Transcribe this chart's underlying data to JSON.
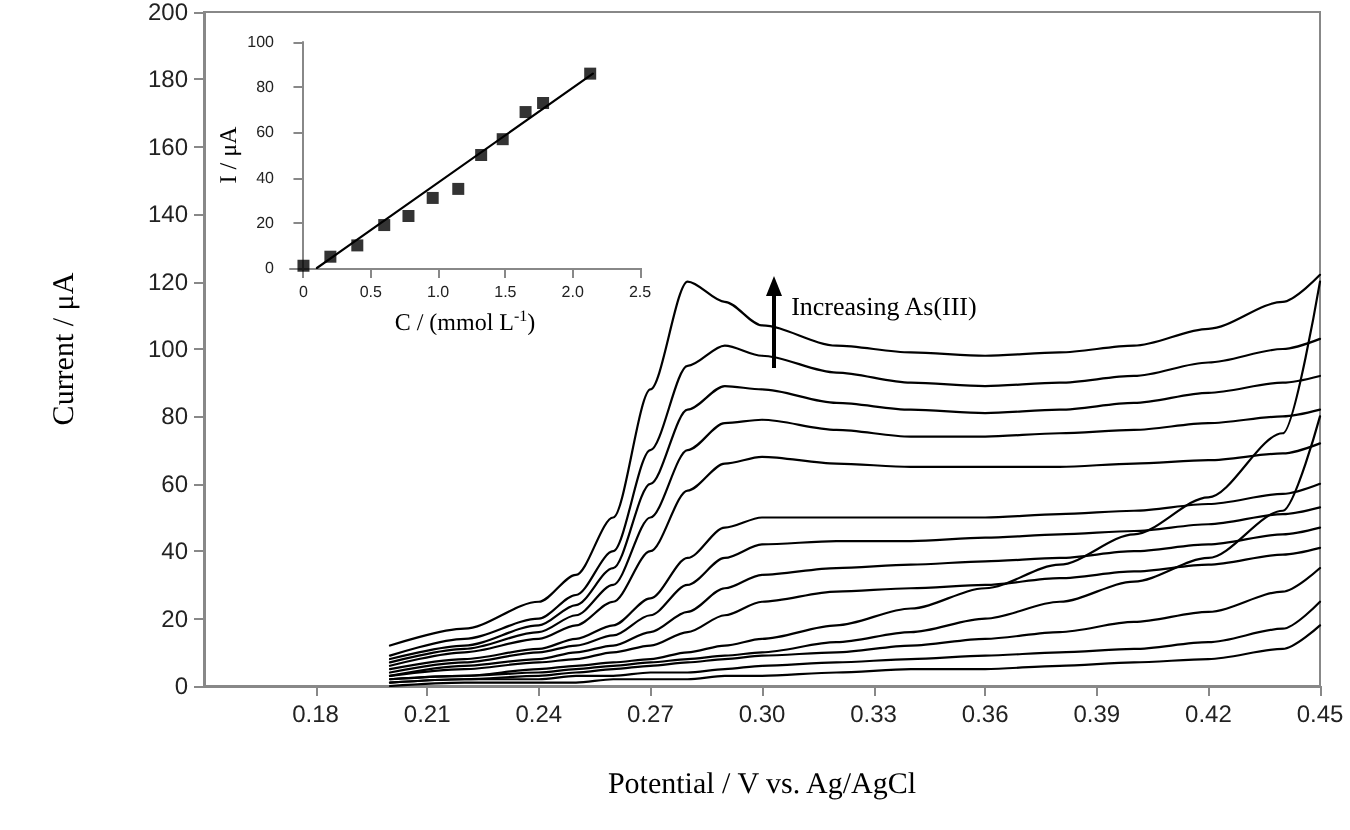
{
  "chart_data": [
    {
      "type": "line",
      "xlabel": "Potential / V vs. Ag/AgCl",
      "ylabel": "Current / μA",
      "xlim": [
        0.15,
        0.45
      ],
      "ylim": [
        0,
        200
      ],
      "xticks": [
        0.18,
        0.21,
        0.24,
        0.27,
        {
          "value": 0.3,
          "label": "0.30"
        },
        0.33,
        0.36,
        0.39,
        0.42,
        0.45
      ],
      "yticks": [
        0,
        20,
        40,
        60,
        80,
        100,
        120,
        140,
        160,
        180,
        200
      ],
      "marker": "none",
      "grid": false,
      "annotations": [
        {
          "text": "Increasing As(III)",
          "x": 0.303,
          "y": 108
        }
      ],
      "x": [
        0.2,
        0.22,
        0.24,
        0.25,
        0.26,
        0.27,
        0.28,
        0.29,
        0.3,
        0.32,
        0.34,
        0.36,
        0.38,
        0.4,
        0.42,
        0.44,
        0.45
      ],
      "series": [
        {
          "color": "#000000",
          "values": [
            12,
            17,
            25,
            33,
            50,
            88,
            120,
            114,
            107,
            101,
            99,
            98,
            99,
            101,
            106,
            114,
            122
          ]
        },
        {
          "color": "#000000",
          "values": [
            9,
            14,
            20,
            27,
            40,
            70,
            95,
            101,
            98,
            93,
            90,
            89,
            90,
            92,
            96,
            100,
            103
          ]
        },
        {
          "color": "#000000",
          "values": [
            8,
            12,
            18,
            24,
            35,
            60,
            82,
            89,
            88,
            84,
            82,
            81,
            82,
            84,
            87,
            90,
            92
          ]
        },
        {
          "color": "#000000",
          "values": [
            7,
            11,
            16,
            21,
            30,
            50,
            70,
            78,
            79,
            76,
            74,
            74,
            75,
            76,
            78,
            80,
            82
          ]
        },
        {
          "color": "#000000",
          "values": [
            6,
            10,
            14,
            18,
            25,
            40,
            58,
            66,
            68,
            66,
            65,
            65,
            65,
            66,
            67,
            69,
            72
          ]
        },
        {
          "color": "#000000",
          "values": [
            5,
            8,
            11,
            14,
            18,
            26,
            38,
            47,
            50,
            50,
            50,
            50,
            51,
            52,
            54,
            57,
            60
          ]
        },
        {
          "color": "#000000",
          "values": [
            4,
            7,
            10,
            12,
            15,
            21,
            30,
            38,
            42,
            43,
            43,
            44,
            45,
            46,
            48,
            51,
            53
          ]
        },
        {
          "color": "#000000",
          "values": [
            3,
            6,
            8,
            10,
            12,
            16,
            22,
            29,
            33,
            35,
            36,
            37,
            38,
            40,
            42,
            45,
            47
          ]
        },
        {
          "color": "#000000",
          "values": [
            3,
            5,
            7,
            8,
            10,
            12,
            16,
            21,
            25,
            28,
            29,
            30,
            32,
            34,
            36,
            39,
            41
          ]
        },
        {
          "color": "#000000",
          "values": [
            2,
            3,
            5,
            6,
            7,
            8,
            10,
            12,
            14,
            18,
            23,
            29,
            36,
            45,
            56,
            75,
            120
          ]
        },
        {
          "color": "#000000",
          "values": [
            2,
            3,
            4,
            5,
            6,
            7,
            8,
            9,
            10,
            13,
            16,
            20,
            25,
            31,
            38,
            52,
            80
          ]
        },
        {
          "color": "#000000",
          "values": [
            1,
            2,
            3,
            4,
            5,
            6,
            7,
            8,
            9,
            10,
            12,
            14,
            16,
            19,
            22,
            28,
            35
          ]
        },
        {
          "color": "#000000",
          "values": [
            1,
            2,
            2,
            3,
            3,
            4,
            4,
            5,
            6,
            7,
            8,
            9,
            10,
            11,
            13,
            17,
            25
          ]
        },
        {
          "color": "#000000",
          "values": [
            0,
            1,
            1,
            1,
            2,
            2,
            2,
            3,
            3,
            4,
            5,
            5,
            6,
            7,
            8,
            11,
            18
          ]
        }
      ]
    },
    {
      "type": "scatter",
      "xlabel": "C / (mmol L$^{-1}$)",
      "ylabel": "I / μA",
      "xlim": [
        -0.1,
        2.5
      ],
      "ylim": [
        0,
        100
      ],
      "xticks": [
        0,
        0.5,
        {
          "value": 1,
          "label": "1.0"
        },
        1.5,
        {
          "value": 2,
          "label": "2.0"
        },
        2.5
      ],
      "yticks": [
        0,
        20,
        40,
        60,
        80,
        100
      ],
      "grid": false,
      "series": [
        {
          "color": "#000000",
          "marker": "square",
          "x": [
            0,
            0.2,
            0.4,
            0.6,
            0.78,
            0.96,
            1.15,
            1.32,
            1.48,
            1.65,
            1.78,
            2.13
          ],
          "values": [
            1,
            5,
            10,
            19,
            23,
            31,
            35,
            50,
            57,
            69,
            73,
            86
          ]
        },
        {
          "type": "line",
          "color": "#000000",
          "marker": "none",
          "x": [
            0.1,
            2.15
          ],
          "values": [
            0,
            86
          ]
        }
      ]
    }
  ]
}
